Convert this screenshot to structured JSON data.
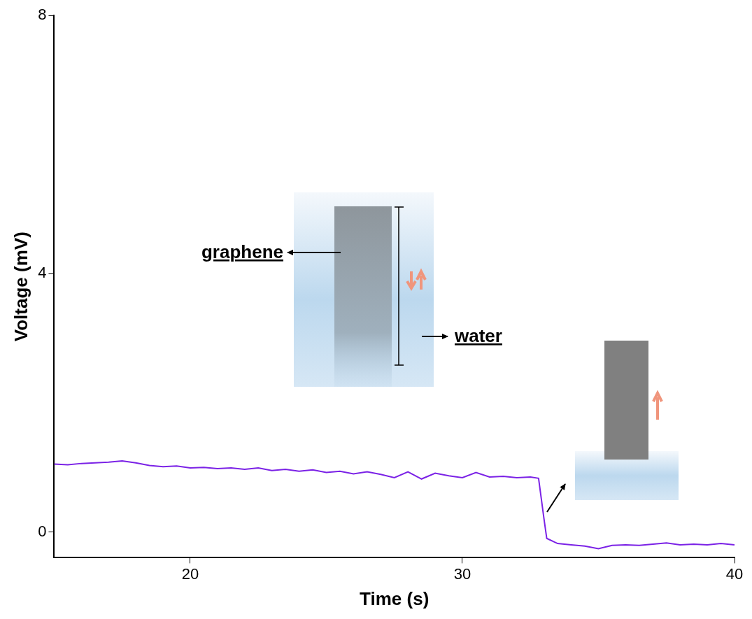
{
  "chart_data": {
    "type": "line",
    "x_label": "Time (s)",
    "y_label": "Voltage (mV)",
    "x": [
      15,
      15.5,
      16,
      16.5,
      17,
      17.5,
      18,
      18.5,
      19,
      19.5,
      20,
      20.5,
      21,
      21.5,
      22,
      22.5,
      23,
      23.5,
      24,
      24.5,
      25,
      25.5,
      26,
      26.5,
      27,
      27.5,
      28,
      28.5,
      29,
      29.5,
      30,
      30.5,
      31,
      31.5,
      32,
      32.5,
      32.8,
      33.0,
      33.1,
      33.5,
      34,
      34.5,
      35,
      35.5,
      36,
      36.5,
      37,
      37.5,
      38,
      38.5,
      39,
      39.5,
      40
    ],
    "values": [
      1.05,
      1.04,
      1.06,
      1.07,
      1.08,
      1.1,
      1.07,
      1.03,
      1.01,
      1.02,
      0.99,
      1.0,
      0.98,
      0.99,
      0.97,
      0.99,
      0.95,
      0.97,
      0.94,
      0.96,
      0.92,
      0.94,
      0.9,
      0.93,
      0.89,
      0.84,
      0.93,
      0.82,
      0.91,
      0.87,
      0.84,
      0.92,
      0.85,
      0.86,
      0.84,
      0.85,
      0.83,
      0.2,
      -0.1,
      -0.18,
      -0.2,
      -0.22,
      -0.26,
      -0.21,
      -0.2,
      -0.21,
      -0.19,
      -0.17,
      -0.2,
      -0.19,
      -0.2,
      -0.18,
      -0.2
    ],
    "color": "#7b22e6",
    "xlim": [
      15,
      40
    ],
    "xticks": [
      20,
      30,
      40
    ],
    "ylim": [
      -0.4,
      8
    ],
    "yticks": [
      0,
      4,
      8
    ],
    "grid": false,
    "annotations": [
      "graphene",
      "water"
    ]
  }
}
